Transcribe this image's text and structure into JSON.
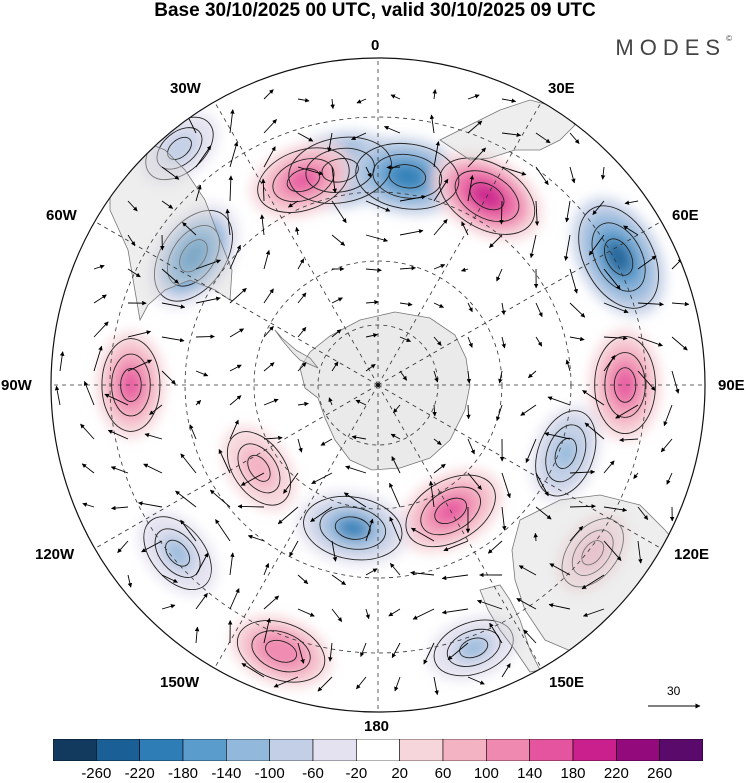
{
  "title": "Base 30/10/2025 00 UTC, valid 30/10/2025 09 UTC",
  "brand": "MODES",
  "brand_mark": "©",
  "longitude_labels": {
    "lon_0": "0",
    "lon_30e": "30E",
    "lon_60e": "60E",
    "lon_90e": "90E",
    "lon_120e": "120E",
    "lon_150e": "150E",
    "lon_180": "180",
    "lon_150w": "150W",
    "lon_120w": "120W",
    "lon_90w": "90W",
    "lon_60w": "60W",
    "lon_30w": "30W"
  },
  "vector_scale": {
    "label": "30"
  },
  "colorbar": {
    "colors": [
      "#113a5e",
      "#1a5f95",
      "#2f7db6",
      "#5a9ccb",
      "#92b8db",
      "#c3cfe6",
      "#e4e2f0",
      "#ffffff",
      "#f6d6da",
      "#f4b3c3",
      "#ef89b0",
      "#e5559f",
      "#c9208d",
      "#930a7c",
      "#5a0a6b"
    ],
    "ticks": [
      "-260",
      "-220",
      "-180",
      "-140",
      "-100",
      "-60",
      "-20",
      "20",
      "60",
      "100",
      "140",
      "180",
      "220",
      "260"
    ]
  },
  "chart_data": {
    "type": "polar-stereographic map (Southern Hemisphere)",
    "projection_center": "South Pole",
    "variable_units": "shaded anomaly with wind vectors",
    "features": [
      {
        "lon": 350,
        "colat": 60,
        "value": -200,
        "label": "anomaly center"
      },
      {
        "lon": 340,
        "colat": 60,
        "value": 160,
        "label": "anomaly center"
      },
      {
        "lon": 320,
        "colat": 85,
        "value": -80,
        "label": "anomaly center"
      },
      {
        "lon": 305,
        "colat": 62,
        "value": -190,
        "label": "anomaly center"
      },
      {
        "lon": 8,
        "colat": 58,
        "value": -200,
        "label": "anomaly center"
      },
      {
        "lon": 30,
        "colat": 60,
        "value": 200,
        "label": "anomaly center"
      },
      {
        "lon": 62,
        "colat": 75,
        "value": -230,
        "label": "anomaly center"
      },
      {
        "lon": 90,
        "colat": 68,
        "value": 170,
        "label": "anomaly center"
      },
      {
        "lon": 110,
        "colat": 55,
        "value": -130,
        "label": "anomaly center"
      },
      {
        "lon": 128,
        "colat": 75,
        "value": 80,
        "label": "anomaly center"
      },
      {
        "lon": 150,
        "colat": 40,
        "value": 170,
        "label": "anomaly center"
      },
      {
        "lon": 160,
        "colat": 77,
        "value": -100,
        "label": "anomaly center"
      },
      {
        "lon": 190,
        "colat": 40,
        "value": -180,
        "label": "anomaly center"
      },
      {
        "lon": 200,
        "colat": 78,
        "value": 140,
        "label": "anomaly center"
      },
      {
        "lon": 230,
        "colat": 72,
        "value": -110,
        "label": "anomaly center"
      },
      {
        "lon": 235,
        "colat": 40,
        "value": 100,
        "label": "anomaly center"
      },
      {
        "lon": 270,
        "colat": 68,
        "value": 150,
        "label": "anomaly center"
      }
    ]
  }
}
